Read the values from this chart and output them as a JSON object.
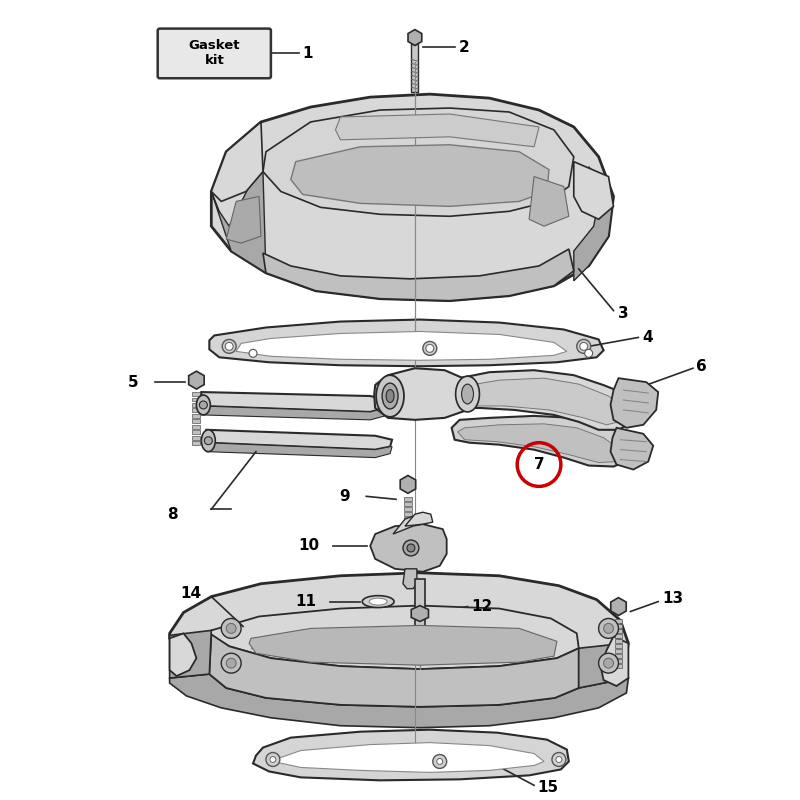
{
  "bg": "#FFFFFF",
  "lc": "#2a2a2a",
  "fc_light": "#D8D8D8",
  "fc_mid": "#C0C0C0",
  "fc_dark": "#A8A8A8",
  "fc_darker": "#909090",
  "red": "#CC0000",
  "gasket_label": "Gasket\nkit",
  "label_fontsize": 10,
  "bold_fontsize": 10
}
